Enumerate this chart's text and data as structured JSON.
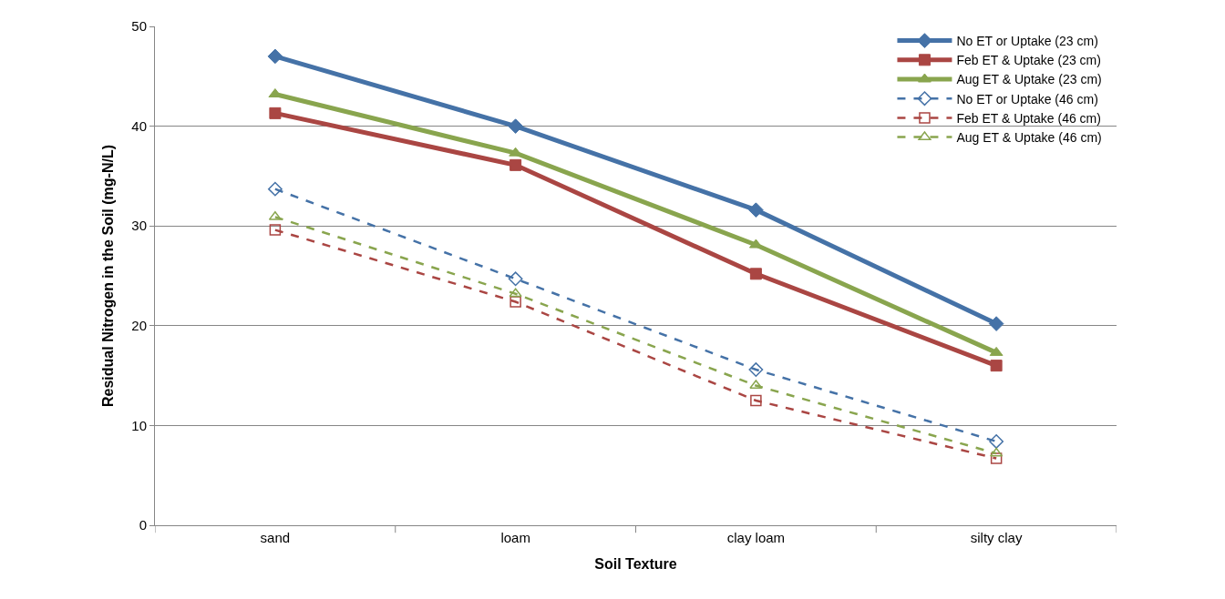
{
  "chart_data": {
    "type": "line",
    "xlabel": "Soil Texture",
    "ylabel": "Residual Nitrogen in the Soil (mg-N/L)",
    "categories": [
      "sand",
      "loam",
      "clay loam",
      "silty clay"
    ],
    "ylim": [
      0,
      50
    ],
    "yticks": [
      0,
      10,
      20,
      30,
      40,
      50
    ],
    "grid": "y",
    "legend": "top right",
    "series": [
      {
        "name": "No ET or Uptake (23 cm)",
        "color": "#4572a7",
        "values": [
          47.0,
          40.0,
          31.6,
          20.2
        ],
        "marker": "diamond",
        "line_style": "solid"
      },
      {
        "name": "Feb ET & Uptake (23 cm)",
        "color": "#aa4643",
        "values": [
          41.3,
          36.1,
          25.2,
          16.0
        ],
        "marker": "square",
        "line_style": "solid"
      },
      {
        "name": "Aug ET & Uptake (23 cm)",
        "color": "#89a54e",
        "values": [
          43.2,
          37.3,
          28.1,
          17.3
        ],
        "marker": "triangle",
        "line_style": "solid"
      },
      {
        "name": "No ET or Uptake (46 cm)",
        "color": "#4572a7",
        "values": [
          33.7,
          24.7,
          15.6,
          8.4
        ],
        "marker": "diamond",
        "line_style": "dashed"
      },
      {
        "name": "Feb ET & Uptake (46 cm)",
        "color": "#aa4643",
        "values": [
          29.6,
          22.4,
          12.5,
          6.7
        ],
        "marker": "square",
        "line_style": "dashed"
      },
      {
        "name": "Aug ET & Uptake (46 cm)",
        "color": "#89a54e",
        "values": [
          30.9,
          23.2,
          14.0,
          7.2
        ],
        "marker": "triangle",
        "line_style": "dashed"
      }
    ]
  }
}
